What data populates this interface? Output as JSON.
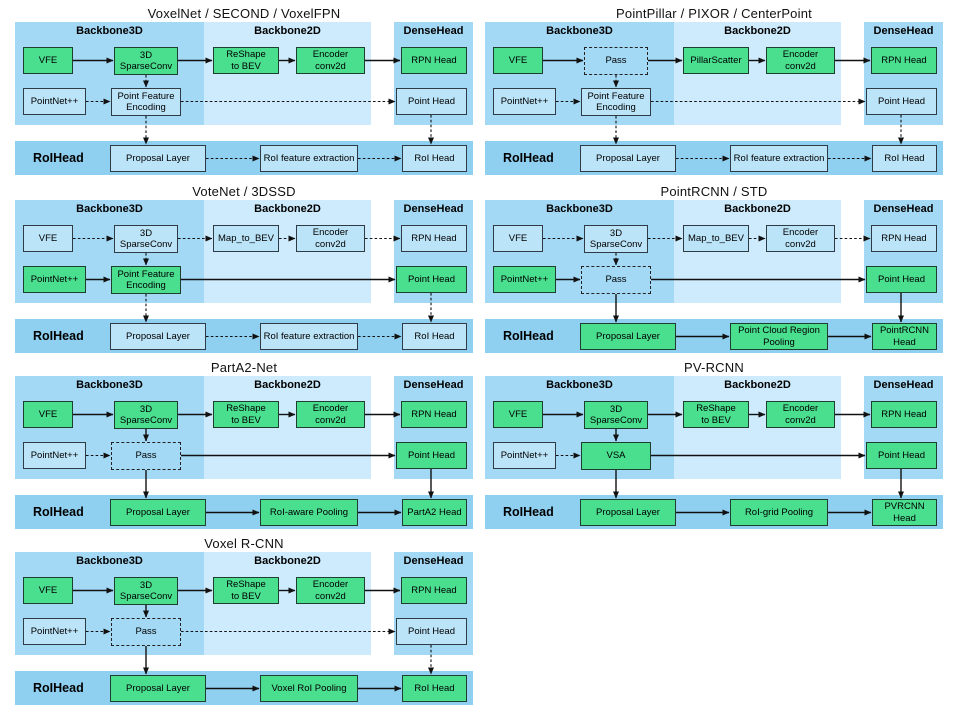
{
  "figure": {
    "description_labels": {
      "backbone3d": "Backbone3D",
      "backbone2d": "Backbone2D",
      "densehead": "DenseHead",
      "roihead": "RoIHead"
    }
  },
  "colors": {
    "panel_backbone3d": "#a3d9f5",
    "panel_backbone2d": "#cdebfc",
    "panel_densehead": "#a3d9f5",
    "panel_roihead": "#8fd0f1",
    "block_green": "#4ade8f",
    "block_blue": "#bce4f8",
    "arrow": "#111111",
    "text": "#000000",
    "background": "#ffffff"
  },
  "labels": {
    "backbone3d": "Backbone3D",
    "backbone2d": "Backbone2D",
    "densehead": "DenseHead",
    "roihead": "RoIHead"
  },
  "diagrams": [
    {
      "id": "voxelnet-second-voxelfpn",
      "title": "VoxelNet / SECOND / VoxelFPN",
      "col": 0,
      "row": 0,
      "blocks": {
        "vfe": {
          "label": "VFE",
          "style": "green"
        },
        "mid1": {
          "label": "3D\nSparseConv",
          "style": "green"
        },
        "b2d1": {
          "label": "ReShape\nto BEV",
          "style": "green"
        },
        "b2d2": {
          "label": "Encoder\nconv2d",
          "style": "green"
        },
        "rpn": {
          "label": "RPN Head",
          "style": "green"
        },
        "pointnet": {
          "label": "PointNet++",
          "style": "blue"
        },
        "mid2": {
          "label": "Point Feature\nEncoding",
          "style": "blue"
        },
        "pointhead": {
          "label": "Point Head",
          "style": "blue"
        },
        "roi1": {
          "label": "Proposal Layer",
          "style": "blue"
        },
        "roi2": {
          "label": "RoI feature extraction",
          "style": "blue"
        },
        "roi3": {
          "label": "RoI Head",
          "style": "blue"
        }
      },
      "arrows": {
        "vfe_mid1": "solid",
        "mid1_b2d1": "solid",
        "b2d1_b2d2": "solid",
        "b2d2_rpn": "solid",
        "mid1_mid2": "dashed",
        "pointnet_mid2": "dashed",
        "mid2_pointhead": "dashed",
        "mid2_roi1": "dashed",
        "pointhead_roi3": "dashed",
        "roi1_roi2": "dashed",
        "roi2_roi3": "dashed"
      }
    },
    {
      "id": "pointpillar-pixor-centerpoint",
      "title": "PointPillar / PIXOR / CenterPoint",
      "col": 1,
      "row": 0,
      "blocks": {
        "vfe": {
          "label": "VFE",
          "style": "green"
        },
        "mid1": {
          "label": "Pass",
          "style": "dashed"
        },
        "b2d1": {
          "label": "PillarScatter",
          "style": "green"
        },
        "b2d2": {
          "label": "Encoder\nconv2d",
          "style": "green"
        },
        "rpn": {
          "label": "RPN Head",
          "style": "green"
        },
        "pointnet": {
          "label": "PointNet++",
          "style": "blue"
        },
        "mid2": {
          "label": "Point Feature\nEncoding",
          "style": "blue"
        },
        "pointhead": {
          "label": "Point Head",
          "style": "blue"
        },
        "roi1": {
          "label": "Proposal Layer",
          "style": "blue"
        },
        "roi2": {
          "label": "RoI feature extraction",
          "style": "blue"
        },
        "roi3": {
          "label": "RoI Head",
          "style": "blue"
        }
      },
      "arrows": {
        "vfe_mid1": "solid",
        "mid1_b2d1": "solid",
        "b2d1_b2d2": "solid",
        "b2d2_rpn": "solid",
        "mid1_mid2": "dashed",
        "pointnet_mid2": "dashed",
        "mid2_pointhead": "dashed",
        "mid2_roi1": "dashed",
        "pointhead_roi3": "dashed",
        "roi1_roi2": "dashed",
        "roi2_roi3": "dashed"
      }
    },
    {
      "id": "votenet-3dssd",
      "title": "VoteNet / 3DSSD",
      "col": 0,
      "row": 1,
      "blocks": {
        "vfe": {
          "label": "VFE",
          "style": "blue"
        },
        "mid1": {
          "label": "3D\nSparseConv",
          "style": "blue"
        },
        "b2d1": {
          "label": "Map_to_BEV",
          "style": "blue"
        },
        "b2d2": {
          "label": "Encoder\nconv2d",
          "style": "blue"
        },
        "rpn": {
          "label": "RPN Head",
          "style": "blue"
        },
        "pointnet": {
          "label": "PointNet++",
          "style": "green"
        },
        "mid2": {
          "label": "Point Feature\nEncoding",
          "style": "green"
        },
        "pointhead": {
          "label": "Point Head",
          "style": "green"
        },
        "roi1": {
          "label": "Proposal Layer",
          "style": "blue"
        },
        "roi2": {
          "label": "RoI feature extraction",
          "style": "blue"
        },
        "roi3": {
          "label": "RoI Head",
          "style": "blue"
        }
      },
      "arrows": {
        "vfe_mid1": "dashed",
        "mid1_b2d1": "dashed",
        "b2d1_b2d2": "dashed",
        "b2d2_rpn": "dashed",
        "mid1_mid2": "dashed",
        "pointnet_mid2": "solid",
        "mid2_pointhead": "solid",
        "mid2_roi1": "dashed",
        "pointhead_roi3": "dashed",
        "roi1_roi2": "dashed",
        "roi2_roi3": "dashed"
      }
    },
    {
      "id": "pointrcnn-std",
      "title": "PointRCNN / STD",
      "col": 1,
      "row": 1,
      "blocks": {
        "vfe": {
          "label": "VFE",
          "style": "blue"
        },
        "mid1": {
          "label": "3D\nSparseConv",
          "style": "blue"
        },
        "b2d1": {
          "label": "Map_to_BEV",
          "style": "blue"
        },
        "b2d2": {
          "label": "Encoder\nconv2d",
          "style": "blue"
        },
        "rpn": {
          "label": "RPN Head",
          "style": "blue"
        },
        "pointnet": {
          "label": "PointNet++",
          "style": "green"
        },
        "mid2": {
          "label": "Pass",
          "style": "dashed"
        },
        "pointhead": {
          "label": "Point Head",
          "style": "green"
        },
        "roi1": {
          "label": "Proposal Layer",
          "style": "green"
        },
        "roi2": {
          "label": "Point Cloud Region\nPooling",
          "style": "green"
        },
        "roi3": {
          "label": "PointRCNN\nHead",
          "style": "green"
        }
      },
      "arrows": {
        "vfe_mid1": "dashed",
        "mid1_b2d1": "dashed",
        "b2d1_b2d2": "dashed",
        "b2d2_rpn": "dashed",
        "mid1_mid2": "dashed",
        "pointnet_mid2": "solid",
        "mid2_pointhead": "solid",
        "mid2_roi1": "solid",
        "pointhead_roi3": "solid",
        "roi1_roi2": "solid",
        "roi2_roi3": "solid"
      }
    },
    {
      "id": "parta2-net",
      "title": "PartA2-Net",
      "col": 0,
      "row": 2,
      "blocks": {
        "vfe": {
          "label": "VFE",
          "style": "green"
        },
        "mid1": {
          "label": "3D\nSparseConv",
          "style": "green"
        },
        "b2d1": {
          "label": "ReShape\nto BEV",
          "style": "green"
        },
        "b2d2": {
          "label": "Encoder\nconv2d",
          "style": "green"
        },
        "rpn": {
          "label": "RPN Head",
          "style": "green"
        },
        "pointnet": {
          "label": "PointNet++",
          "style": "blue"
        },
        "mid2": {
          "label": "Pass",
          "style": "dashed"
        },
        "pointhead": {
          "label": "Point Head",
          "style": "green"
        },
        "roi1": {
          "label": "Proposal Layer",
          "style": "green"
        },
        "roi2": {
          "label": "RoI-aware Pooling",
          "style": "green"
        },
        "roi3": {
          "label": "PartA2 Head",
          "style": "green"
        }
      },
      "arrows": {
        "vfe_mid1": "solid",
        "mid1_b2d1": "solid",
        "b2d1_b2d2": "solid",
        "b2d2_rpn": "solid",
        "mid1_mid2": "solid",
        "pointnet_mid2": "dashed",
        "mid2_pointhead": "solid",
        "mid2_roi1": "solid",
        "pointhead_roi3": "solid",
        "roi1_roi2": "solid",
        "roi2_roi3": "solid"
      }
    },
    {
      "id": "pv-rcnn",
      "title": "PV-RCNN",
      "col": 1,
      "row": 2,
      "blocks": {
        "vfe": {
          "label": "VFE",
          "style": "green"
        },
        "mid1": {
          "label": "3D\nSparseConv",
          "style": "green"
        },
        "b2d1": {
          "label": "ReShape\nto BEV",
          "style": "green"
        },
        "b2d2": {
          "label": "Encoder\nconv2d",
          "style": "green"
        },
        "rpn": {
          "label": "RPN Head",
          "style": "green"
        },
        "pointnet": {
          "label": "PointNet++",
          "style": "blue"
        },
        "mid2": {
          "label": "VSA",
          "style": "green"
        },
        "pointhead": {
          "label": "Point Head",
          "style": "green"
        },
        "roi1": {
          "label": "Proposal Layer",
          "style": "green"
        },
        "roi2": {
          "label": "RoI-grid Pooling",
          "style": "green"
        },
        "roi3": {
          "label": "PVRCNN\nHead",
          "style": "green"
        }
      },
      "arrows": {
        "vfe_mid1": "solid",
        "mid1_b2d1": "solid",
        "b2d1_b2d2": "solid",
        "b2d2_rpn": "solid",
        "mid1_mid2": "solid",
        "pointnet_mid2": "dashed",
        "mid2_pointhead": "solid",
        "mid2_roi1": "solid",
        "pointhead_roi3": "solid",
        "roi1_roi2": "solid",
        "roi2_roi3": "solid"
      }
    },
    {
      "id": "voxel-r-cnn",
      "title": "Voxel R-CNN",
      "col": 0,
      "row": 3,
      "blocks": {
        "vfe": {
          "label": "VFE",
          "style": "green"
        },
        "mid1": {
          "label": "3D\nSparseConv",
          "style": "green"
        },
        "b2d1": {
          "label": "ReShape\nto BEV",
          "style": "green"
        },
        "b2d2": {
          "label": "Encoder\nconv2d",
          "style": "green"
        },
        "rpn": {
          "label": "RPN Head",
          "style": "green"
        },
        "pointnet": {
          "label": "PointNet++",
          "style": "blue"
        },
        "mid2": {
          "label": "Pass",
          "style": "dashed"
        },
        "pointhead": {
          "label": "Point Head",
          "style": "blue"
        },
        "roi1": {
          "label": "Proposal Layer",
          "style": "green"
        },
        "roi2": {
          "label": "Voxel RoI Pooling",
          "style": "green"
        },
        "roi3": {
          "label": "RoI Head",
          "style": "green"
        }
      },
      "arrows": {
        "vfe_mid1": "solid",
        "mid1_b2d1": "solid",
        "b2d1_b2d2": "solid",
        "b2d2_rpn": "solid",
        "mid1_mid2": "solid",
        "pointnet_mid2": "dashed",
        "mid2_pointhead": "dashed",
        "mid2_roi1": "solid",
        "pointhead_roi3": "dashed",
        "roi1_roi2": "solid",
        "roi2_roi3": "solid"
      }
    }
  ]
}
